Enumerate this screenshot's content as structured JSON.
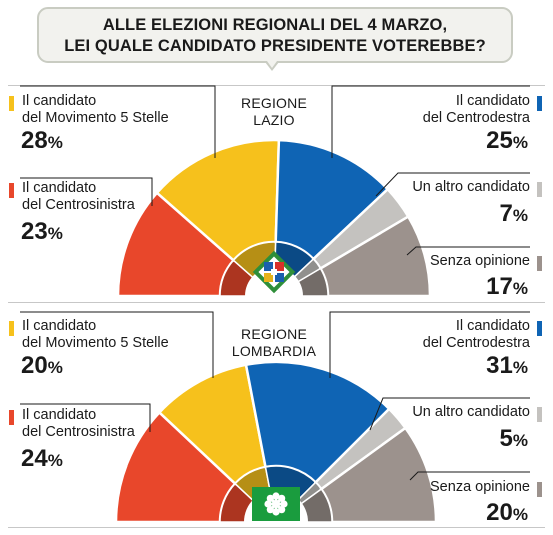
{
  "question": {
    "line1": "ALLE ELEZIONI REGIONALI DEL 4 MARZO,",
    "line2": "LEI QUALE CANDIDATO PRESIDENTE VOTEREBBE?"
  },
  "colors": {
    "m5s": "#f6c11c",
    "centrodestra": "#0f64b4",
    "centrosinistra": "#e8472b",
    "altro": "#c4c2bf",
    "senza_opinione": "#9c928d",
    "logo_lombardia": "#1a9c3e"
  },
  "legend_labels": {
    "m5s": [
      "Il candidato",
      "del Movimento 5 Stelle"
    ],
    "centrosinistra": [
      "Il candidato",
      "del Centrosinistra"
    ],
    "centrodestra": [
      "Il candidato",
      "del Centrodestra"
    ],
    "altro": [
      "Un altro candidato"
    ],
    "senza_opinione": [
      "Senza opinione"
    ]
  },
  "percent_sign": "%",
  "chart_data": [
    {
      "type": "pie",
      "subtype": "semicircle",
      "title": "REGIONE LAZIO",
      "title_lines": [
        "REGIONE",
        "LAZIO"
      ],
      "slices": [
        {
          "key": "centrosinistra",
          "value": 23
        },
        {
          "key": "m5s",
          "value": 28
        },
        {
          "key": "centrodestra",
          "value": 25
        },
        {
          "key": "altro",
          "value": 7
        },
        {
          "key": "senza_opinione",
          "value": 17
        }
      ],
      "logo": "lazio-region-emblem"
    },
    {
      "type": "pie",
      "subtype": "semicircle",
      "title": "REGIONE LOMBARDIA",
      "title_lines": [
        "REGIONE",
        "LOMBARDIA"
      ],
      "slices": [
        {
          "key": "centrosinistra",
          "value": 24
        },
        {
          "key": "m5s",
          "value": 20
        },
        {
          "key": "centrodestra",
          "value": 31
        },
        {
          "key": "altro",
          "value": 5
        },
        {
          "key": "senza_opinione",
          "value": 20
        }
      ],
      "logo": "lombardia-rosa-camuna-emblem"
    }
  ]
}
